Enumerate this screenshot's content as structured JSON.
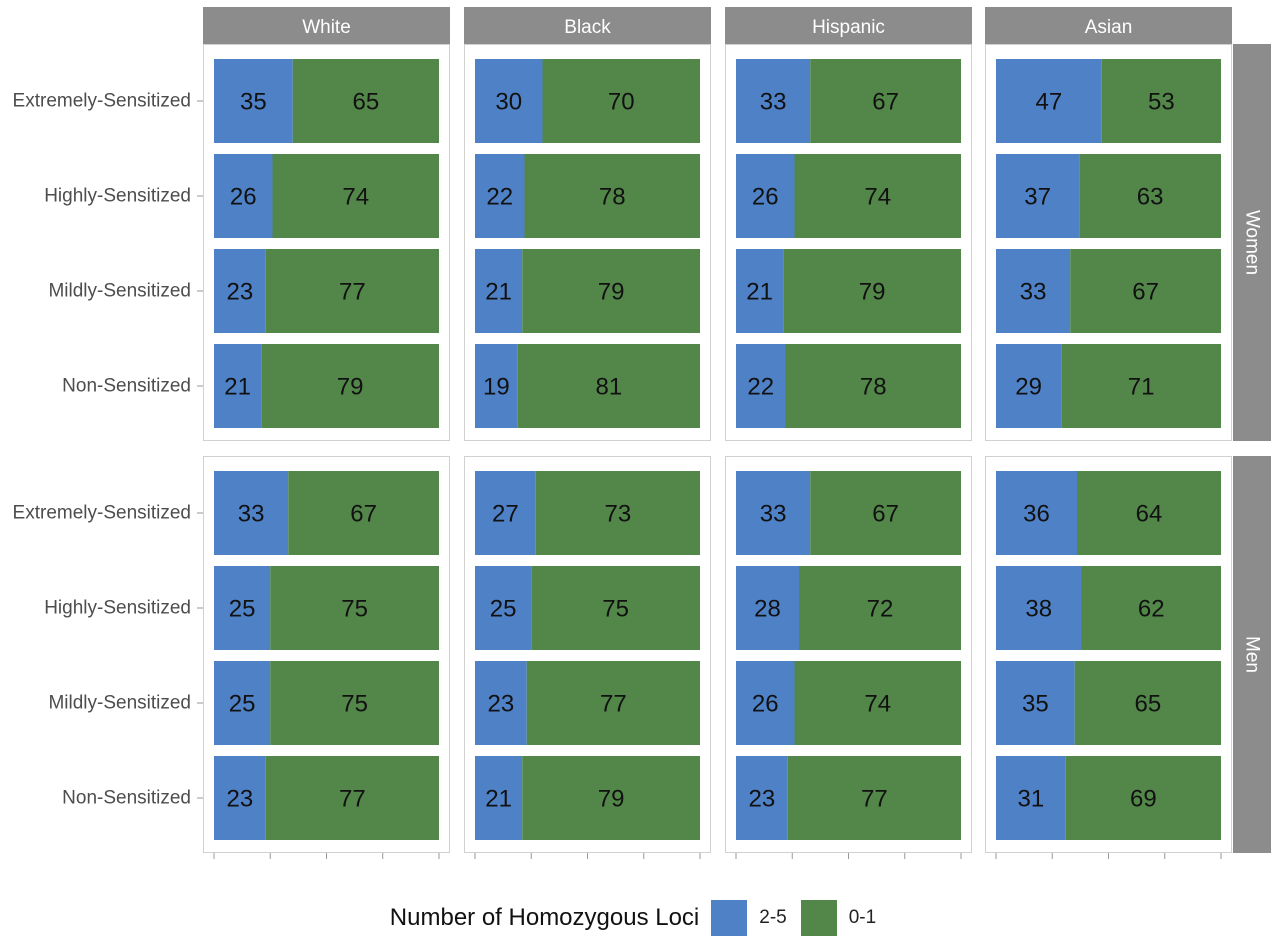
{
  "chart_data": {
    "type": "bar",
    "orientation": "horizontal",
    "stacked": true,
    "normalized_percent": true,
    "columns": [
      "White",
      "Black",
      "Hispanic",
      "Asian"
    ],
    "rows": [
      "Women",
      "Men"
    ],
    "categories": [
      "Extremely-Sensitized",
      "Highly-Sensitized",
      "Mildly-Sensitized",
      "Non-Sensitized"
    ],
    "series": [
      {
        "name": "2-5",
        "color": "#4f81c7"
      },
      {
        "name": "0-1",
        "color": "#538749"
      }
    ],
    "panels": [
      {
        "row": "Women",
        "column": "White",
        "values": [
          35,
          26,
          23,
          21
        ]
      },
      {
        "row": "Women",
        "column": "Black",
        "values": [
          30,
          22,
          21,
          19
        ]
      },
      {
        "row": "Women",
        "column": "Hispanic",
        "values": [
          33,
          26,
          21,
          22
        ]
      },
      {
        "row": "Women",
        "column": "Asian",
        "values": [
          47,
          37,
          33,
          29
        ]
      },
      {
        "row": "Men",
        "column": "White",
        "values": [
          33,
          25,
          25,
          23
        ]
      },
      {
        "row": "Men",
        "column": "Black",
        "values": [
          27,
          25,
          23,
          21
        ]
      },
      {
        "row": "Men",
        "column": "Hispanic",
        "values": [
          33,
          28,
          26,
          23
        ]
      },
      {
        "row": "Men",
        "column": "Asian",
        "values": [
          36,
          38,
          35,
          31
        ]
      }
    ],
    "xlim": [
      0,
      100
    ],
    "grid": false,
    "legend_position": "bottom"
  },
  "legend": {
    "title": "Number of Homozygous Loci",
    "items": [
      {
        "label": "2-5",
        "color": "#4f81c7"
      },
      {
        "label": "0-1",
        "color": "#538749"
      }
    ]
  },
  "colors": {
    "strip": "#8c8c8c",
    "panel_border": "#d0d0d0",
    "axis_text": "#4d4d4d"
  }
}
